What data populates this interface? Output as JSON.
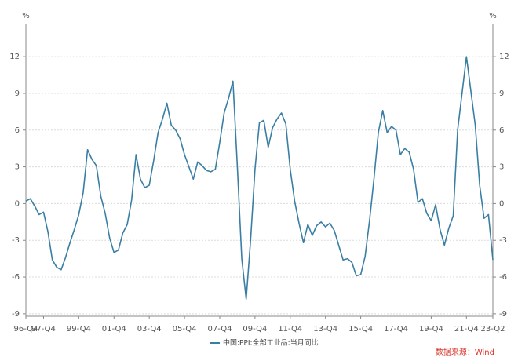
{
  "chart_data": {
    "type": "line",
    "y_unit": "%",
    "y2_unit": "%",
    "source": "数据来源：Wind",
    "categories": [
      "96-Q4",
      null,
      null,
      null,
      "97-Q4",
      null,
      null,
      null,
      null,
      null,
      null,
      null,
      "99-Q4",
      null,
      null,
      null,
      null,
      null,
      null,
      null,
      "01-Q4",
      null,
      null,
      null,
      null,
      null,
      null,
      null,
      "03-Q4",
      null,
      null,
      null,
      null,
      null,
      null,
      null,
      "05-Q4",
      null,
      null,
      null,
      null,
      null,
      null,
      null,
      "07-Q4",
      null,
      null,
      null,
      null,
      null,
      null,
      null,
      "09-Q4",
      null,
      null,
      null,
      null,
      null,
      null,
      null,
      "11-Q4",
      null,
      null,
      null,
      null,
      null,
      null,
      null,
      "13-Q4",
      null,
      null,
      null,
      null,
      null,
      null,
      null,
      "15-Q4",
      null,
      null,
      null,
      null,
      null,
      null,
      null,
      "17-Q4",
      null,
      null,
      null,
      null,
      null,
      null,
      null,
      "19-Q4",
      null,
      null,
      null,
      null,
      null,
      null,
      null,
      "21-Q4",
      null,
      null,
      null,
      null,
      null,
      "23-Q2"
    ],
    "series": [
      {
        "name": "中国:PPI:全部工业品:当月同比",
        "color": "#3a7fa3",
        "values": [
          0.2,
          0.4,
          -0.2,
          -0.9,
          -0.7,
          -2.3,
          -4.6,
          -5.2,
          -5.4,
          -4.4,
          -3.2,
          -2.1,
          -0.9,
          0.9,
          4.4,
          3.6,
          3.1,
          0.6,
          -0.8,
          -2.8,
          -4.0,
          -3.8,
          -2.4,
          -1.7,
          0.3,
          4.0,
          2.0,
          1.3,
          1.5,
          3.5,
          5.8,
          6.9,
          8.2,
          6.4,
          6.0,
          5.3,
          4.0,
          3.0,
          2.0,
          3.4,
          3.1,
          2.7,
          2.6,
          2.8,
          5.0,
          7.4,
          8.6,
          10.0,
          3.0,
          -4.5,
          -7.8,
          -3.0,
          2.8,
          6.6,
          6.8,
          4.6,
          6.2,
          6.9,
          7.4,
          6.5,
          2.8,
          0.2,
          -1.6,
          -3.2,
          -1.7,
          -2.6,
          -1.8,
          -1.5,
          -1.9,
          -1.6,
          -2.2,
          -3.4,
          -4.6,
          -4.5,
          -4.8,
          -5.9,
          -5.8,
          -4.3,
          -1.4,
          2.0,
          5.8,
          7.6,
          5.8,
          6.3,
          6.0,
          4.0,
          4.5,
          4.2,
          2.8,
          0.1,
          0.4,
          -0.8,
          -1.4,
          -0.1,
          -2.1,
          -3.4,
          -2.0,
          -1.0,
          6.0,
          9.0,
          12.0,
          9.2,
          6.4,
          1.5,
          -1.2,
          -0.9,
          -4.6
        ]
      }
    ],
    "ylim": [
      -9.2,
      14.7
    ],
    "yticks": [
      -9,
      -6,
      -3,
      0,
      3,
      6,
      9,
      12
    ],
    "y2lim": [
      -9.2,
      14.7
    ],
    "y2ticks": [
      -9,
      -6,
      -3,
      0,
      3,
      6,
      9,
      12
    ],
    "grid": true
  }
}
